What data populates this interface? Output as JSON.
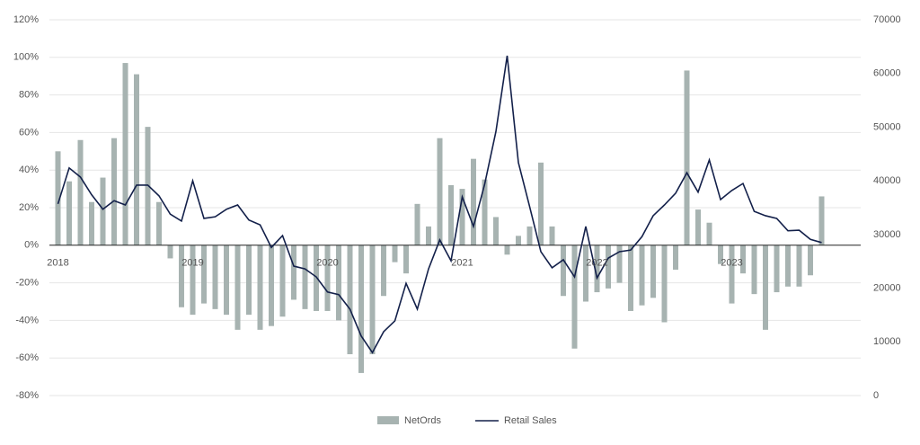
{
  "chart_data": {
    "type": "bar-line",
    "categories": [
      "2018",
      null,
      null,
      null,
      null,
      null,
      null,
      null,
      null,
      null,
      null,
      null,
      "2019",
      null,
      null,
      null,
      null,
      null,
      null,
      null,
      null,
      null,
      null,
      null,
      "2020",
      null,
      null,
      null,
      null,
      null,
      null,
      null,
      null,
      null,
      null,
      null,
      "2021",
      null,
      null,
      null,
      null,
      null,
      null,
      null,
      null,
      null,
      null,
      null,
      "2022",
      null,
      null,
      null,
      null,
      null,
      null,
      null,
      null,
      null,
      null,
      null,
      "2023",
      null,
      null,
      null,
      null,
      null,
      null,
      null,
      null
    ],
    "series": [
      {
        "name": "NetOrds",
        "type": "bar",
        "color": "#a7b3b1",
        "values": [
          50,
          34,
          56,
          23,
          36,
          57,
          97,
          91,
          63,
          23,
          -7,
          -33,
          -37,
          -31,
          -34,
          -37,
          -45,
          -37,
          -45,
          -43,
          -38,
          -29,
          -34,
          -35,
          -35,
          -40,
          -58,
          -68,
          -58,
          -27,
          -9,
          -15,
          22,
          10,
          57,
          32,
          30,
          46,
          35,
          15,
          -5,
          5,
          10,
          44,
          10,
          -27,
          -55,
          -30,
          -25,
          -23,
          -20,
          -35,
          -32,
          -28,
          -41,
          -13,
          93,
          19,
          12,
          -10,
          -31,
          -15,
          -26,
          -45,
          -25,
          -22,
          -22,
          -16,
          26
        ]
      },
      {
        "name": "Retail Sales",
        "type": "line",
        "axis": "y2",
        "color": "#13204a",
        "values": [
          35700,
          42400,
          40700,
          37400,
          34700,
          36300,
          35500,
          39200,
          39200,
          37200,
          33800,
          32500,
          40000,
          33000,
          33300,
          34700,
          35500,
          32700,
          31800,
          27600,
          29800,
          24100,
          23600,
          22100,
          19300,
          18800,
          16100,
          11100,
          8000,
          11900,
          13900,
          20900,
          16100,
          23600,
          29000,
          25100,
          37000,
          31500,
          39400,
          49200,
          63300,
          43400,
          35200,
          26800,
          23800,
          25300,
          22100,
          31500,
          21900,
          25600,
          26800,
          27100,
          29600,
          33500,
          35500,
          37700,
          41500,
          37900,
          43900,
          36500,
          38200,
          39500,
          34300,
          33500,
          33000,
          30700,
          30800,
          29100,
          28500
        ]
      }
    ],
    "ylim": [
      -80,
      120
    ],
    "yticks": [
      {
        "value": -80,
        "label": "-80%"
      },
      {
        "value": -60,
        "label": "-60%"
      },
      {
        "value": -40,
        "label": "-40%"
      },
      {
        "value": -20,
        "label": "-20%"
      },
      {
        "value": 0,
        "label": "0%"
      },
      {
        "value": 20,
        "label": "20%"
      },
      {
        "value": 40,
        "label": "40%"
      },
      {
        "value": 60,
        "label": "60%"
      },
      {
        "value": 80,
        "label": "80%"
      },
      {
        "value": 100,
        "label": "100%"
      },
      {
        "value": 120,
        "label": "120%"
      }
    ],
    "y2lim": [
      0,
      70000
    ],
    "y2ticks": [
      0,
      10000,
      20000,
      30000,
      40000,
      50000,
      60000,
      70000
    ],
    "grid": true,
    "legend": "bottom"
  }
}
